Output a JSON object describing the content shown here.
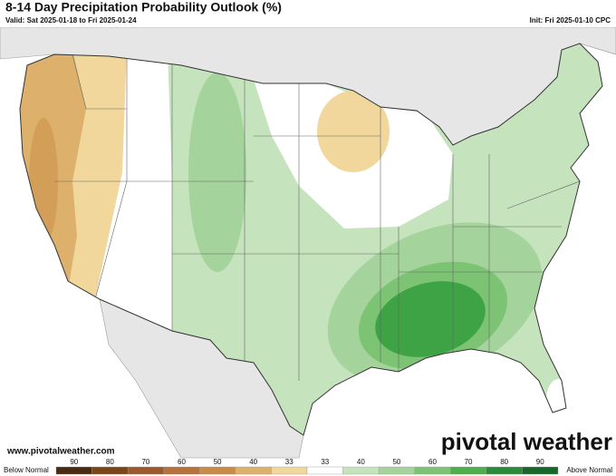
{
  "header": {
    "title": "8-14 Day Precipitation Probability Outlook (%)",
    "valid": "Valid: Sat 2025-01-18 to Fri 2025-01-24",
    "init": "Init: Fri 2025-01-10 CPC"
  },
  "footer": {
    "website": "www.pivotalweather.com",
    "brand": "pivotal weather"
  },
  "legend": {
    "below_label": "Below Normal",
    "above_label": "Above Normal",
    "bins": [
      {
        "label": 90,
        "color": "#4a2a10"
      },
      {
        "label": 80,
        "color": "#7a4618"
      },
      {
        "label": 70,
        "color": "#9a5a2c"
      },
      {
        "label": 60,
        "color": "#b8713a"
      },
      {
        "label": 50,
        "color": "#c98c48"
      },
      {
        "label": 40,
        "color": "#ddb06c"
      },
      {
        "label": 33,
        "color": "#f1d79c"
      },
      {
        "label": 33,
        "color": "#ffffff"
      },
      {
        "label": 40,
        "color": "#c5e4bd"
      },
      {
        "label": 50,
        "color": "#a4d39b"
      },
      {
        "label": 60,
        "color": "#7cc474"
      },
      {
        "label": 70,
        "color": "#4fae4c"
      },
      {
        "label": 80,
        "color": "#2a8a3a"
      },
      {
        "label": 90,
        "color": "#17662a"
      }
    ]
  }
}
